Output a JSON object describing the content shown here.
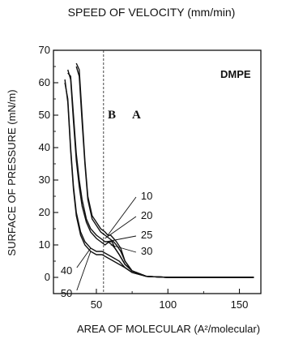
{
  "chart_data": {
    "type": "line",
    "title": "SPEED OF VELOCITY (mm/min)",
    "xlabel": "AREA OF MOLECULAR (A²/molecular)",
    "ylabel": "SURFACE OF PRESSURE (mN/m)",
    "xlim": [
      20,
      165
    ],
    "ylim": [
      -5,
      70
    ],
    "xticks": [
      50,
      100,
      150
    ],
    "yticks": [
      0,
      10,
      20,
      30,
      40,
      50,
      60,
      70
    ],
    "grid": false,
    "compound_label": "DMPE",
    "region_labels": [
      "B",
      "A"
    ],
    "reference_line_x": 55,
    "series": [
      {
        "name": "10",
        "x": [
          36,
          38,
          40,
          42,
          44,
          47,
          50,
          53,
          56,
          58,
          60,
          62,
          64,
          67,
          70,
          75,
          85,
          100,
          130,
          160
        ],
        "y": [
          66,
          64,
          50,
          36,
          25,
          19,
          17,
          15,
          14,
          13,
          13,
          12,
          11,
          9,
          5,
          2,
          0.3,
          0,
          0,
          0
        ]
      },
      {
        "name": "20",
        "x": [
          36,
          38,
          40,
          42,
          44,
          47,
          50,
          53,
          56,
          59,
          62,
          64,
          67,
          70,
          75,
          85,
          100,
          130,
          160
        ],
        "y": [
          65,
          62,
          48,
          35,
          24,
          18,
          16,
          14,
          13,
          12,
          11,
          10,
          8,
          5,
          2,
          0.3,
          0,
          0,
          0
        ]
      },
      {
        "name": "25",
        "x": [
          30,
          32,
          34,
          36,
          38,
          40,
          43,
          46,
          50,
          53,
          56,
          58,
          61,
          63,
          66,
          70,
          75,
          85,
          100,
          130,
          160
        ],
        "y": [
          63,
          62,
          50,
          38,
          30,
          24,
          18,
          15,
          13,
          12,
          11,
          11,
          10,
          9,
          7,
          4,
          2,
          0.3,
          0,
          0,
          0
        ]
      },
      {
        "name": "30",
        "x": [
          30,
          32,
          34,
          36,
          38,
          40,
          43,
          46,
          50,
          53,
          56,
          59,
          61,
          63,
          66,
          70,
          75,
          85,
          100,
          130,
          160
        ],
        "y": [
          64,
          61,
          48,
          36,
          28,
          22,
          17,
          14,
          12,
          11,
          10,
          11,
          11,
          9,
          7,
          4,
          2,
          0.3,
          0,
          0,
          0
        ]
      },
      {
        "name": "40",
        "x": [
          28,
          30,
          32,
          34,
          36,
          39,
          42,
          46,
          50,
          54,
          58,
          62,
          66,
          70,
          75,
          85,
          100,
          130,
          160
        ],
        "y": [
          60,
          55,
          40,
          28,
          20,
          14,
          11,
          9,
          8,
          8,
          7,
          6,
          5,
          3,
          1.5,
          0.3,
          0,
          0,
          0
        ]
      },
      {
        "name": "50",
        "x": [
          28,
          30,
          32,
          34,
          36,
          39,
          42,
          46,
          50,
          54,
          58,
          62,
          66,
          70,
          75,
          85,
          100,
          130,
          160
        ],
        "y": [
          61,
          54,
          39,
          27,
          19,
          13,
          10,
          8,
          7,
          7,
          6,
          5,
          4,
          3,
          1.5,
          0.3,
          0,
          0,
          0
        ]
      }
    ],
    "annotations": [
      {
        "text": "10",
        "x": 80,
        "y": 25,
        "target_x": 58,
        "target_y": 13
      },
      {
        "text": "20",
        "x": 80,
        "y": 19,
        "target_x": 56,
        "target_y": 12
      },
      {
        "text": "25",
        "x": 80,
        "y": 13,
        "target_x": 57,
        "target_y": 11
      },
      {
        "text": "30",
        "x": 80,
        "y": 8,
        "target_x": 60,
        "target_y": 10
      },
      {
        "text": "40",
        "x": 25,
        "y": 2,
        "target_x": 46,
        "target_y": 9
      },
      {
        "text": "50",
        "x": 25,
        "y": -5,
        "target_x": 46,
        "target_y": 8
      }
    ]
  }
}
